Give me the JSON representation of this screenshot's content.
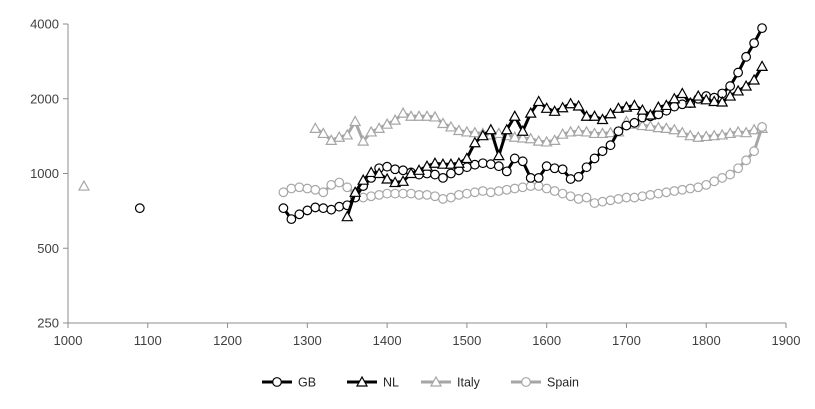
{
  "chart_data": {
    "type": "line",
    "title": "",
    "xlabel": "",
    "ylabel": "",
    "y_scale": "log",
    "xlim": [
      1000,
      1900
    ],
    "ylim": [
      250,
      4000
    ],
    "x_ticks": [
      "1000",
      "1100",
      "1200",
      "1300",
      "1400",
      "1500",
      "1600",
      "1700",
      "1800",
      "1900"
    ],
    "y_ticks": [
      "250",
      "500",
      "1000",
      "2000",
      "4000"
    ],
    "grid": false,
    "legend_position": "bottom",
    "series": [
      {
        "name": "GB",
        "color": "#000000",
        "line_width": 3,
        "marker": "circle",
        "isolated_points": [
          [
            1090,
            725
          ]
        ],
        "points": [
          [
            1270,
            725
          ],
          [
            1280,
            655
          ],
          [
            1290,
            685
          ],
          [
            1300,
            710
          ],
          [
            1310,
            730
          ],
          [
            1320,
            725
          ],
          [
            1330,
            715
          ],
          [
            1340,
            735
          ],
          [
            1350,
            745
          ],
          [
            1360,
            800
          ],
          [
            1370,
            890
          ],
          [
            1380,
            960
          ],
          [
            1390,
            1050
          ],
          [
            1400,
            1065
          ],
          [
            1410,
            1040
          ],
          [
            1420,
            1030
          ],
          [
            1430,
            1010
          ],
          [
            1440,
            990
          ],
          [
            1450,
            1000
          ],
          [
            1460,
            990
          ],
          [
            1470,
            960
          ],
          [
            1480,
            1000
          ],
          [
            1490,
            1030
          ],
          [
            1500,
            1060
          ],
          [
            1510,
            1085
          ],
          [
            1520,
            1100
          ],
          [
            1530,
            1090
          ],
          [
            1540,
            1070
          ],
          [
            1550,
            1020
          ],
          [
            1560,
            1150
          ],
          [
            1570,
            1120
          ],
          [
            1580,
            960
          ],
          [
            1590,
            960
          ],
          [
            1600,
            1070
          ],
          [
            1610,
            1050
          ],
          [
            1620,
            1040
          ],
          [
            1630,
            950
          ],
          [
            1640,
            970
          ],
          [
            1650,
            1060
          ],
          [
            1660,
            1150
          ],
          [
            1670,
            1230
          ],
          [
            1680,
            1300
          ],
          [
            1690,
            1480
          ],
          [
            1700,
            1560
          ],
          [
            1710,
            1600
          ],
          [
            1720,
            1680
          ],
          [
            1730,
            1700
          ],
          [
            1740,
            1730
          ],
          [
            1750,
            1790
          ],
          [
            1760,
            1860
          ],
          [
            1770,
            1900
          ],
          [
            1780,
            1920
          ],
          [
            1790,
            2000
          ],
          [
            1800,
            2050
          ],
          [
            1810,
            2020
          ],
          [
            1820,
            2100
          ],
          [
            1830,
            2250
          ],
          [
            1840,
            2550
          ],
          [
            1850,
            2950
          ],
          [
            1860,
            3350
          ],
          [
            1870,
            3850
          ]
        ]
      },
      {
        "name": "NL",
        "color": "#000000",
        "line_width": 3,
        "marker": "triangle",
        "points": [
          [
            1350,
            670
          ],
          [
            1360,
            840
          ],
          [
            1370,
            940
          ],
          [
            1380,
            1010
          ],
          [
            1390,
            1000
          ],
          [
            1400,
            950
          ],
          [
            1410,
            920
          ],
          [
            1420,
            930
          ],
          [
            1430,
            1000
          ],
          [
            1440,
            1030
          ],
          [
            1450,
            1070
          ],
          [
            1460,
            1100
          ],
          [
            1470,
            1090
          ],
          [
            1480,
            1090
          ],
          [
            1490,
            1100
          ],
          [
            1500,
            1150
          ],
          [
            1510,
            1330
          ],
          [
            1520,
            1420
          ],
          [
            1530,
            1500
          ],
          [
            1540,
            1180
          ],
          [
            1550,
            1500
          ],
          [
            1560,
            1700
          ],
          [
            1570,
            1480
          ],
          [
            1580,
            1750
          ],
          [
            1590,
            1950
          ],
          [
            1600,
            1830
          ],
          [
            1610,
            1780
          ],
          [
            1620,
            1840
          ],
          [
            1630,
            1910
          ],
          [
            1640,
            1870
          ],
          [
            1650,
            1700
          ],
          [
            1660,
            1700
          ],
          [
            1670,
            1650
          ],
          [
            1680,
            1740
          ],
          [
            1690,
            1830
          ],
          [
            1700,
            1850
          ],
          [
            1710,
            1880
          ],
          [
            1720,
            1800
          ],
          [
            1730,
            1720
          ],
          [
            1740,
            1850
          ],
          [
            1750,
            1880
          ],
          [
            1760,
            2000
          ],
          [
            1770,
            2100
          ],
          [
            1780,
            1920
          ],
          [
            1790,
            2050
          ],
          [
            1800,
            1980
          ],
          [
            1810,
            1950
          ],
          [
            1820,
            1940
          ],
          [
            1830,
            2050
          ],
          [
            1840,
            2150
          ],
          [
            1850,
            2250
          ],
          [
            1860,
            2380
          ],
          [
            1870,
            2700
          ]
        ]
      },
      {
        "name": "Italy",
        "color": "#a6a6a6",
        "line_width": 3,
        "marker": "triangle",
        "isolated_points": [
          [
            1020,
            890
          ]
        ],
        "points": [
          [
            1310,
            1520
          ],
          [
            1320,
            1450
          ],
          [
            1330,
            1360
          ],
          [
            1340,
            1400
          ],
          [
            1350,
            1430
          ],
          [
            1360,
            1620
          ],
          [
            1370,
            1350
          ],
          [
            1380,
            1470
          ],
          [
            1390,
            1520
          ],
          [
            1400,
            1580
          ],
          [
            1410,
            1640
          ],
          [
            1420,
            1750
          ],
          [
            1430,
            1700
          ],
          [
            1440,
            1700
          ],
          [
            1450,
            1700
          ],
          [
            1460,
            1690
          ],
          [
            1470,
            1590
          ],
          [
            1480,
            1540
          ],
          [
            1490,
            1490
          ],
          [
            1500,
            1470
          ],
          [
            1510,
            1460
          ],
          [
            1520,
            1450
          ],
          [
            1530,
            1430
          ],
          [
            1540,
            1450
          ],
          [
            1550,
            1420
          ],
          [
            1560,
            1400
          ],
          [
            1570,
            1390
          ],
          [
            1580,
            1380
          ],
          [
            1590,
            1350
          ],
          [
            1600,
            1340
          ],
          [
            1610,
            1360
          ],
          [
            1620,
            1440
          ],
          [
            1630,
            1470
          ],
          [
            1640,
            1480
          ],
          [
            1650,
            1470
          ],
          [
            1660,
            1450
          ],
          [
            1670,
            1450
          ],
          [
            1680,
            1460
          ],
          [
            1690,
            1470
          ],
          [
            1700,
            1620
          ],
          [
            1710,
            1580
          ],
          [
            1720,
            1560
          ],
          [
            1730,
            1550
          ],
          [
            1740,
            1530
          ],
          [
            1750,
            1520
          ],
          [
            1760,
            1500
          ],
          [
            1770,
            1460
          ],
          [
            1780,
            1420
          ],
          [
            1790,
            1400
          ],
          [
            1800,
            1410
          ],
          [
            1810,
            1420
          ],
          [
            1820,
            1430
          ],
          [
            1830,
            1450
          ],
          [
            1840,
            1470
          ],
          [
            1850,
            1460
          ],
          [
            1860,
            1500
          ],
          [
            1870,
            1520
          ]
        ]
      },
      {
        "name": "Spain",
        "color": "#a6a6a6",
        "line_width": 3,
        "marker": "circle",
        "points": [
          [
            1270,
            840
          ],
          [
            1280,
            870
          ],
          [
            1290,
            880
          ],
          [
            1300,
            870
          ],
          [
            1310,
            860
          ],
          [
            1320,
            840
          ],
          [
            1330,
            900
          ],
          [
            1340,
            920
          ],
          [
            1350,
            880
          ],
          [
            1360,
            830
          ],
          [
            1370,
            800
          ],
          [
            1380,
            810
          ],
          [
            1390,
            820
          ],
          [
            1400,
            830
          ],
          [
            1410,
            830
          ],
          [
            1420,
            830
          ],
          [
            1430,
            830
          ],
          [
            1440,
            820
          ],
          [
            1450,
            820
          ],
          [
            1460,
            810
          ],
          [
            1470,
            790
          ],
          [
            1480,
            800
          ],
          [
            1490,
            820
          ],
          [
            1500,
            830
          ],
          [
            1510,
            840
          ],
          [
            1520,
            850
          ],
          [
            1530,
            840
          ],
          [
            1540,
            850
          ],
          [
            1550,
            860
          ],
          [
            1560,
            870
          ],
          [
            1570,
            880
          ],
          [
            1580,
            890
          ],
          [
            1590,
            890
          ],
          [
            1600,
            870
          ],
          [
            1610,
            850
          ],
          [
            1620,
            830
          ],
          [
            1630,
            810
          ],
          [
            1640,
            790
          ],
          [
            1650,
            800
          ],
          [
            1660,
            760
          ],
          [
            1670,
            770
          ],
          [
            1680,
            780
          ],
          [
            1690,
            790
          ],
          [
            1700,
            800
          ],
          [
            1710,
            800
          ],
          [
            1720,
            810
          ],
          [
            1730,
            820
          ],
          [
            1740,
            830
          ],
          [
            1750,
            840
          ],
          [
            1760,
            850
          ],
          [
            1770,
            860
          ],
          [
            1780,
            870
          ],
          [
            1790,
            880
          ],
          [
            1800,
            900
          ],
          [
            1810,
            930
          ],
          [
            1820,
            960
          ],
          [
            1830,
            990
          ],
          [
            1840,
            1050
          ],
          [
            1850,
            1130
          ],
          [
            1860,
            1230
          ],
          [
            1870,
            1540
          ]
        ]
      }
    ]
  }
}
